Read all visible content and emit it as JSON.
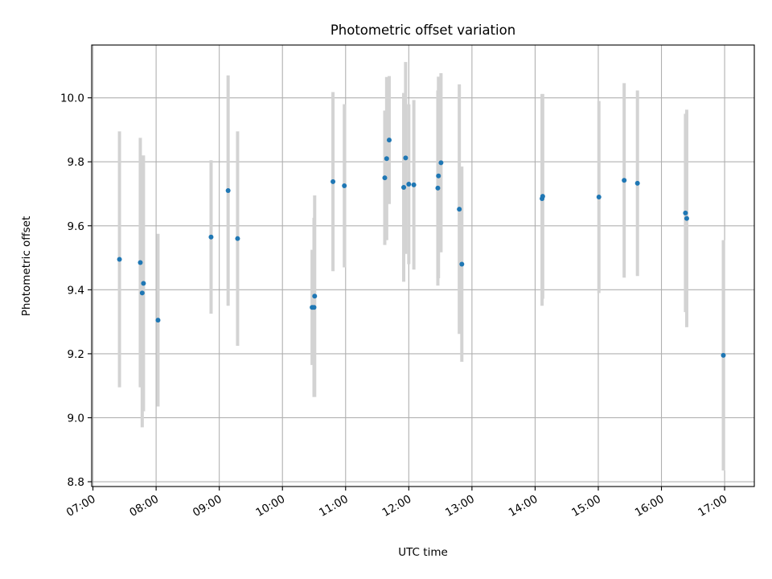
{
  "chart_data": {
    "type": "scatter",
    "title": "Photometric offset variation",
    "xlabel": "UTC time",
    "ylabel": "Photometric offset",
    "x_unit": "hours UTC",
    "xlim": [
      6.98,
      17.47
    ],
    "ylim": [
      8.785,
      10.165
    ],
    "x_ticks": [
      {
        "value": 7,
        "label": "07:00"
      },
      {
        "value": 8,
        "label": "08:00"
      },
      {
        "value": 9,
        "label": "09:00"
      },
      {
        "value": 10,
        "label": "10:00"
      },
      {
        "value": 11,
        "label": "11:00"
      },
      {
        "value": 12,
        "label": "12:00"
      },
      {
        "value": 13,
        "label": "13:00"
      },
      {
        "value": 14,
        "label": "14:00"
      },
      {
        "value": 15,
        "label": "15:00"
      },
      {
        "value": 16,
        "label": "16:00"
      },
      {
        "value": 17,
        "label": "17:00"
      }
    ],
    "y_ticks": [
      {
        "value": 8.8,
        "label": "8.8"
      },
      {
        "value": 9.0,
        "label": "9.0"
      },
      {
        "value": 9.2,
        "label": "9.2"
      },
      {
        "value": 9.4,
        "label": "9.4"
      },
      {
        "value": 9.6,
        "label": "9.6"
      },
      {
        "value": 9.8,
        "label": "9.8"
      },
      {
        "value": 10.0,
        "label": "10.0"
      }
    ],
    "grid": true,
    "point_color": "#1f77b4",
    "errorbar_color": "#d3d3d3",
    "points": [
      {
        "x": 7.42,
        "y": 9.495,
        "lo": 9.095,
        "hi": 9.895
      },
      {
        "x": 7.75,
        "y": 9.485,
        "lo": 9.095,
        "hi": 9.875
      },
      {
        "x": 7.78,
        "y": 9.39,
        "lo": 8.97,
        "hi": 9.81
      },
      {
        "x": 7.8,
        "y": 9.42,
        "lo": 9.02,
        "hi": 9.82
      },
      {
        "x": 8.03,
        "y": 9.305,
        "lo": 9.035,
        "hi": 9.575
      },
      {
        "x": 8.87,
        "y": 9.565,
        "lo": 9.325,
        "hi": 9.805
      },
      {
        "x": 9.14,
        "y": 9.71,
        "lo": 9.35,
        "hi": 10.07
      },
      {
        "x": 9.29,
        "y": 9.56,
        "lo": 9.225,
        "hi": 9.895
      },
      {
        "x": 10.47,
        "y": 9.345,
        "lo": 9.165,
        "hi": 9.525
      },
      {
        "x": 10.5,
        "y": 9.345,
        "lo": 9.065,
        "hi": 9.625
      },
      {
        "x": 10.51,
        "y": 9.38,
        "lo": 9.065,
        "hi": 9.695
      },
      {
        "x": 10.8,
        "y": 9.738,
        "lo": 9.458,
        "hi": 10.018
      },
      {
        "x": 10.98,
        "y": 9.725,
        "lo": 9.47,
        "hi": 9.98
      },
      {
        "x": 11.62,
        "y": 9.75,
        "lo": 9.54,
        "hi": 9.96
      },
      {
        "x": 11.65,
        "y": 9.81,
        "lo": 9.555,
        "hi": 10.065
      },
      {
        "x": 11.69,
        "y": 9.868,
        "lo": 9.668,
        "hi": 10.068
      },
      {
        "x": 11.92,
        "y": 9.72,
        "lo": 9.425,
        "hi": 10.015
      },
      {
        "x": 11.95,
        "y": 9.812,
        "lo": 9.512,
        "hi": 10.112
      },
      {
        "x": 12.0,
        "y": 9.73,
        "lo": 9.48,
        "hi": 9.98
      },
      {
        "x": 12.08,
        "y": 9.728,
        "lo": 9.463,
        "hi": 9.993
      },
      {
        "x": 12.46,
        "y": 9.718,
        "lo": 9.413,
        "hi": 10.023
      },
      {
        "x": 12.47,
        "y": 9.756,
        "lo": 9.436,
        "hi": 10.066
      },
      {
        "x": 12.51,
        "y": 9.797,
        "lo": 9.517,
        "hi": 10.077
      },
      {
        "x": 12.8,
        "y": 9.652,
        "lo": 9.262,
        "hi": 10.042
      },
      {
        "x": 12.84,
        "y": 9.48,
        "lo": 9.175,
        "hi": 9.785
      },
      {
        "x": 14.11,
        "y": 9.685,
        "lo": 9.35,
        "hi": 10.012
      },
      {
        "x": 14.12,
        "y": 9.692,
        "lo": 9.372,
        "hi": 10.012
      },
      {
        "x": 15.01,
        "y": 9.69,
        "lo": 9.39,
        "hi": 9.99
      },
      {
        "x": 15.41,
        "y": 9.742,
        "lo": 9.438,
        "hi": 10.046
      },
      {
        "x": 15.62,
        "y": 9.733,
        "lo": 9.443,
        "hi": 10.023
      },
      {
        "x": 16.38,
        "y": 9.64,
        "lo": 9.33,
        "hi": 9.95
      },
      {
        "x": 16.4,
        "y": 9.623,
        "lo": 9.283,
        "hi": 9.963
      },
      {
        "x": 16.98,
        "y": 9.195,
        "lo": 8.835,
        "hi": 9.555
      }
    ]
  }
}
